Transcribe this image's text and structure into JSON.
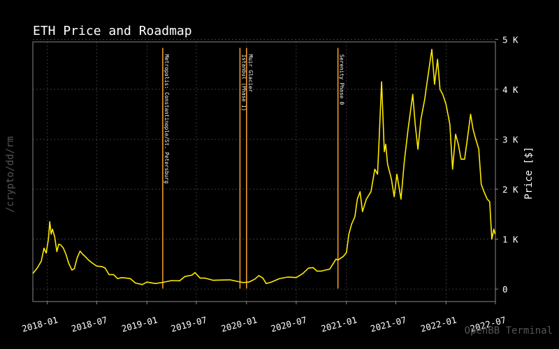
{
  "chart_data": {
    "type": "line",
    "title": "ETH Price and Roadmap",
    "ylabel": "Price [$]",
    "xlabel": "",
    "xlim": [
      "2017-11-09",
      "2022-07-01"
    ],
    "ylim": [
      -250,
      4950
    ],
    "x_ticks": [
      {
        "date": "2018-01-01",
        "label": "2018-01"
      },
      {
        "date": "2018-07-01",
        "label": "2018-07"
      },
      {
        "date": "2019-01-01",
        "label": "2019-01"
      },
      {
        "date": "2019-07-01",
        "label": "2019-07"
      },
      {
        "date": "2020-01-01",
        "label": "2020-01"
      },
      {
        "date": "2020-07-01",
        "label": "2020-07"
      },
      {
        "date": "2021-01-01",
        "label": "2021-01"
      },
      {
        "date": "2021-07-01",
        "label": "2021-07"
      },
      {
        "date": "2022-01-01",
        "label": "2022-01"
      },
      {
        "date": "2022-07-01",
        "label": "2022-07"
      }
    ],
    "y_ticks": [
      {
        "value": 0,
        "label": "0"
      },
      {
        "value": 1000,
        "label": "1 K"
      },
      {
        "value": 2000,
        "label": "2 K"
      },
      {
        "value": 3000,
        "label": "3 K"
      },
      {
        "value": 4000,
        "label": "4 K"
      },
      {
        "value": 5000,
        "label": "5 K"
      }
    ],
    "grid": true,
    "y_axis_side": "right",
    "series": [
      {
        "color": "#ffea00",
        "points": [
          [
            "2017-11-09",
            310
          ],
          [
            "2017-11-25",
            420
          ],
          [
            "2017-12-10",
            560
          ],
          [
            "2017-12-20",
            820
          ],
          [
            "2017-12-28",
            720
          ],
          [
            "2018-01-05",
            1000
          ],
          [
            "2018-01-10",
            1350
          ],
          [
            "2018-01-15",
            1100
          ],
          [
            "2018-01-20",
            1200
          ],
          [
            "2018-01-28",
            1050
          ],
          [
            "2018-02-05",
            750
          ],
          [
            "2018-02-12",
            900
          ],
          [
            "2018-02-20",
            880
          ],
          [
            "2018-03-01",
            820
          ],
          [
            "2018-03-10",
            700
          ],
          [
            "2018-03-20",
            520
          ],
          [
            "2018-04-01",
            380
          ],
          [
            "2018-04-10",
            410
          ],
          [
            "2018-04-20",
            620
          ],
          [
            "2018-05-01",
            760
          ],
          [
            "2018-05-10",
            700
          ],
          [
            "2018-05-20",
            650
          ],
          [
            "2018-06-01",
            580
          ],
          [
            "2018-06-15",
            520
          ],
          [
            "2018-07-01",
            460
          ],
          [
            "2018-07-20",
            450
          ],
          [
            "2018-08-01",
            420
          ],
          [
            "2018-08-15",
            290
          ],
          [
            "2018-09-01",
            290
          ],
          [
            "2018-09-15",
            210
          ],
          [
            "2018-10-01",
            230
          ],
          [
            "2018-11-01",
            210
          ],
          [
            "2018-11-20",
            120
          ],
          [
            "2018-12-15",
            90
          ],
          [
            "2019-01-01",
            140
          ],
          [
            "2019-02-01",
            110
          ],
          [
            "2019-03-01",
            135
          ],
          [
            "2019-04-01",
            170
          ],
          [
            "2019-05-01",
            165
          ],
          [
            "2019-05-20",
            250
          ],
          [
            "2019-06-15",
            280
          ],
          [
            "2019-06-26",
            330
          ],
          [
            "2019-07-15",
            220
          ],
          [
            "2019-08-01",
            220
          ],
          [
            "2019-09-01",
            175
          ],
          [
            "2019-10-01",
            180
          ],
          [
            "2019-11-01",
            185
          ],
          [
            "2019-12-01",
            150
          ],
          [
            "2019-12-20",
            130
          ],
          [
            "2020-01-10",
            140
          ],
          [
            "2020-02-01",
            200
          ],
          [
            "2020-02-15",
            270
          ],
          [
            "2020-03-01",
            220
          ],
          [
            "2020-03-13",
            110
          ],
          [
            "2020-04-01",
            140
          ],
          [
            "2020-05-01",
            210
          ],
          [
            "2020-06-01",
            240
          ],
          [
            "2020-07-01",
            230
          ],
          [
            "2020-07-25",
            310
          ],
          [
            "2020-08-15",
            420
          ],
          [
            "2020-09-01",
            430
          ],
          [
            "2020-09-15",
            360
          ],
          [
            "2020-10-01",
            360
          ],
          [
            "2020-11-01",
            400
          ],
          [
            "2020-11-24",
            600
          ],
          [
            "2020-12-01",
            580
          ],
          [
            "2020-12-20",
            650
          ],
          [
            "2021-01-01",
            730
          ],
          [
            "2021-01-10",
            1100
          ],
          [
            "2021-01-20",
            1300
          ],
          [
            "2021-02-01",
            1450
          ],
          [
            "2021-02-10",
            1800
          ],
          [
            "2021-02-20",
            1950
          ],
          [
            "2021-03-01",
            1550
          ],
          [
            "2021-03-15",
            1800
          ],
          [
            "2021-04-01",
            1950
          ],
          [
            "2021-04-15",
            2400
          ],
          [
            "2021-04-25",
            2300
          ],
          [
            "2021-05-01",
            3000
          ],
          [
            "2021-05-10",
            4150
          ],
          [
            "2021-05-20",
            2750
          ],
          [
            "2021-05-25",
            2900
          ],
          [
            "2021-06-01",
            2500
          ],
          [
            "2021-06-15",
            2200
          ],
          [
            "2021-06-25",
            1850
          ],
          [
            "2021-07-05",
            2300
          ],
          [
            "2021-07-20",
            1800
          ],
          [
            "2021-08-01",
            2550
          ],
          [
            "2021-08-15",
            3200
          ],
          [
            "2021-09-01",
            3900
          ],
          [
            "2021-09-10",
            3300
          ],
          [
            "2021-09-20",
            2800
          ],
          [
            "2021-10-01",
            3400
          ],
          [
            "2021-10-15",
            3800
          ],
          [
            "2021-10-25",
            4200
          ],
          [
            "2021-11-10",
            4800
          ],
          [
            "2021-11-20",
            4100
          ],
          [
            "2021-12-01",
            4600
          ],
          [
            "2021-12-10",
            4000
          ],
          [
            "2021-12-20",
            3900
          ],
          [
            "2022-01-01",
            3700
          ],
          [
            "2022-01-15",
            3300
          ],
          [
            "2022-01-25",
            2400
          ],
          [
            "2022-02-05",
            3100
          ],
          [
            "2022-02-15",
            2900
          ],
          [
            "2022-02-25",
            2600
          ],
          [
            "2022-03-10",
            2600
          ],
          [
            "2022-03-20",
            3000
          ],
          [
            "2022-04-01",
            3500
          ],
          [
            "2022-04-10",
            3200
          ],
          [
            "2022-04-20",
            3000
          ],
          [
            "2022-05-01",
            2800
          ],
          [
            "2022-05-10",
            2100
          ],
          [
            "2022-05-20",
            1950
          ],
          [
            "2022-06-01",
            1800
          ],
          [
            "2022-06-10",
            1750
          ],
          [
            "2022-06-18",
            1000
          ],
          [
            "2022-06-25",
            1200
          ],
          [
            "2022-06-30",
            1100
          ]
        ]
      }
    ],
    "events": [
      {
        "date": "2019-02-28",
        "label": "Metropolis: Constantinople/St. Petersburg",
        "color": "#f09a2a"
      },
      {
        "date": "2019-12-08",
        "label": "Istanbul (Phase I)",
        "color": "#f09a2a"
      },
      {
        "date": "2020-01-01",
        "label": "Muir Glacier",
        "color": "#f09a2a"
      },
      {
        "date": "2020-12-01",
        "label": "Serenity Phase 0",
        "color": "#f09a2a"
      }
    ]
  },
  "watermark_left": "/crypto/dd/rm",
  "watermark_right": "OpenBB Terminal",
  "colors": {
    "background": "#000000",
    "grid": "#444444",
    "spine": "#888888",
    "text": "#ffffff",
    "watermark": "#555555"
  }
}
